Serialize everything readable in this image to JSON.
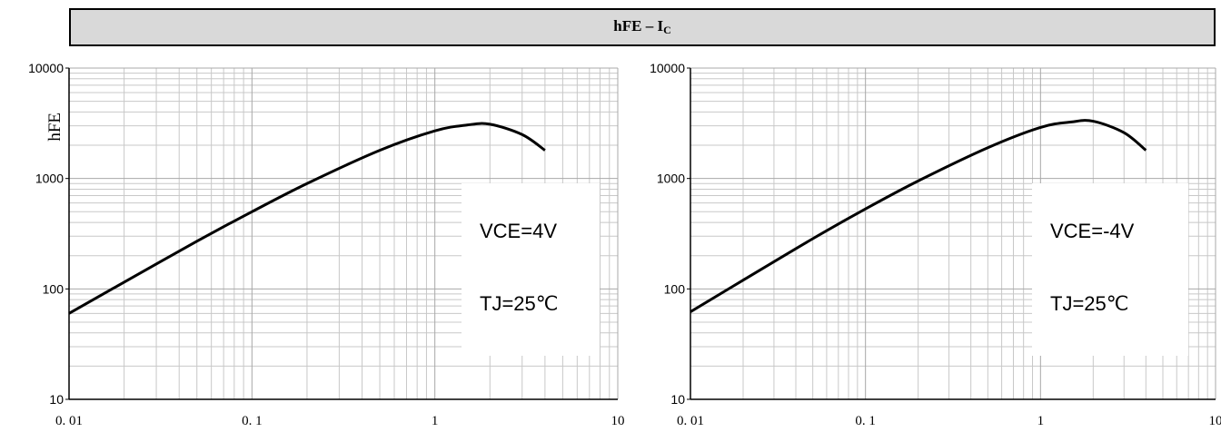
{
  "header": {
    "title_main": "hFE – I",
    "title_sub": "C"
  },
  "chart_data": [
    {
      "type": "line",
      "xscale": "log",
      "yscale": "log",
      "xlim": [
        0.01,
        10
      ],
      "ylim": [
        10,
        10000
      ],
      "grid": true,
      "ylabel": "hFE",
      "xticks": [
        "0. 01",
        "0. 1",
        "1",
        "10"
      ],
      "yticks": [
        "10",
        "100",
        "1000",
        "10000"
      ],
      "annotations": [
        "VCE=4V",
        "TJ=25℃"
      ],
      "series": [
        {
          "x": [
            0.01,
            0.02,
            0.05,
            0.1,
            0.2,
            0.5,
            1,
            1.5,
            2,
            3,
            4
          ],
          "y": [
            60,
            115,
            270,
            500,
            900,
            1800,
            2700,
            3050,
            3100,
            2500,
            1800
          ]
        }
      ]
    },
    {
      "type": "line",
      "xscale": "log",
      "yscale": "log",
      "xlim": [
        0.01,
        10
      ],
      "ylim": [
        10,
        10000
      ],
      "grid": true,
      "ylabel": "",
      "xticks": [
        "0. 01",
        "0. 1",
        "1",
        "10"
      ],
      "yticks": [
        "10",
        "100",
        "1000",
        "10000"
      ],
      "annotations": [
        "VCE=-4V",
        "TJ=25℃"
      ],
      "series": [
        {
          "x": [
            0.01,
            0.02,
            0.05,
            0.1,
            0.2,
            0.5,
            1,
            1.5,
            2,
            3,
            4
          ],
          "y": [
            62,
            120,
            285,
            530,
            950,
            1900,
            2900,
            3250,
            3300,
            2600,
            1800
          ]
        }
      ]
    }
  ]
}
